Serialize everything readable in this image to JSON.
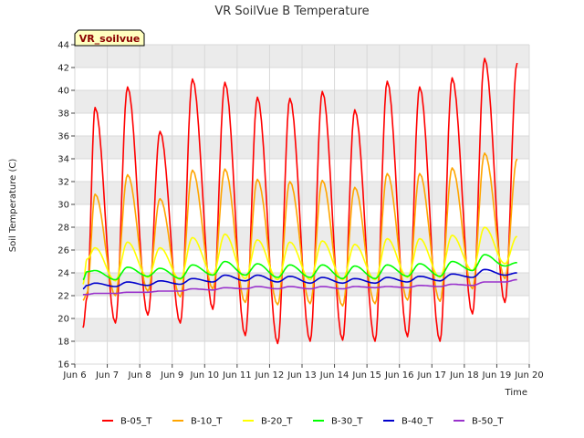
{
  "chart_data": {
    "type": "line",
    "title": "VR SoilVue B Temperature",
    "xlabel": "Time",
    "ylabel": "Soil Temperature (C)",
    "badge": "VR_soilvue",
    "ylim": [
      16,
      44
    ],
    "yticks": [
      16,
      18,
      20,
      22,
      24,
      26,
      28,
      30,
      32,
      34,
      36,
      38,
      40,
      42,
      44
    ],
    "xlim": [
      "Jun 6",
      "Jun 20"
    ],
    "xticks": [
      "Jun 6",
      "Jun 7",
      "Jun 8",
      "Jun 9",
      "Jun 10",
      "Jun 11",
      "Jun 12",
      "Jun 13",
      "Jun 14",
      "Jun 15",
      "Jun 16",
      "Jun 17",
      "Jun 18",
      "Jun 19",
      "Jun 20"
    ],
    "grid": true,
    "legend_position": "bottom",
    "x_start": "Jun 6 09:00",
    "x_end": "Jun 20",
    "daily_extremes": {
      "min_time": "06:00",
      "max_time": "15:00",
      "days": [
        "Jun 6",
        "Jun 7",
        "Jun 8",
        "Jun 9",
        "Jun 10",
        "Jun 11",
        "Jun 12",
        "Jun 13",
        "Jun 14",
        "Jun 15",
        "Jun 16",
        "Jun 17",
        "Jun 18",
        "Jun 19"
      ]
    },
    "series": [
      {
        "name": "B-05_T",
        "color": "#ff0000",
        "start": 21.8,
        "daily_min": [
          19.2,
          19.6,
          20.3,
          19.6,
          20.8,
          18.5,
          17.8,
          18.0,
          18.1,
          18.0,
          18.4,
          18.0,
          20.4,
          21.4
        ],
        "daily_max": [
          38.5,
          40.3,
          36.4,
          41.0,
          40.7,
          39.4,
          39.3,
          39.9,
          38.3,
          40.8,
          40.3,
          41.1,
          42.8,
          42.4
        ]
      },
      {
        "name": "B-10_T",
        "color": "#ffa500",
        "start": 22.2,
        "daily_min": [
          21.6,
          22.0,
          22.4,
          21.9,
          22.6,
          21.4,
          21.2,
          21.3,
          21.1,
          21.3,
          21.6,
          21.5,
          22.6,
          23.5
        ],
        "daily_max": [
          30.9,
          32.6,
          30.5,
          33.0,
          33.1,
          32.2,
          32.0,
          32.1,
          31.5,
          32.7,
          32.7,
          33.2,
          34.5,
          34.0
        ]
      },
      {
        "name": "B-20_T",
        "color": "#ffff00",
        "start": 25.2,
        "daily_min": [
          23.0,
          23.3,
          23.6,
          23.4,
          23.8,
          23.5,
          23.4,
          23.4,
          23.4,
          23.4,
          23.6,
          23.6,
          24.2,
          24.8
        ],
        "daily_max": [
          26.2,
          26.7,
          26.2,
          27.1,
          27.4,
          26.9,
          26.7,
          26.8,
          26.5,
          27.0,
          27.0,
          27.3,
          28.0,
          27.2
        ]
      },
      {
        "name": "B-30_T",
        "color": "#00ff00",
        "start": 24.1,
        "daily_min": [
          23.4,
          23.4,
          23.7,
          23.5,
          23.8,
          23.8,
          23.6,
          23.6,
          23.5,
          23.5,
          23.7,
          23.7,
          24.2,
          24.6
        ],
        "daily_max": [
          24.2,
          24.5,
          24.4,
          24.7,
          25.0,
          24.8,
          24.7,
          24.7,
          24.6,
          24.7,
          24.8,
          25.0,
          25.6,
          24.9
        ]
      },
      {
        "name": "B-40_T",
        "color": "#0000cc",
        "start": 22.9,
        "daily_min": [
          22.6,
          22.8,
          22.9,
          23.0,
          23.2,
          23.3,
          23.2,
          23.1,
          23.1,
          23.1,
          23.2,
          23.3,
          23.6,
          23.8
        ],
        "daily_max": [
          23.1,
          23.2,
          23.3,
          23.5,
          23.8,
          23.8,
          23.7,
          23.6,
          23.5,
          23.6,
          23.7,
          23.9,
          24.3,
          24.0
        ]
      },
      {
        "name": "B-50_T",
        "color": "#9932cc",
        "start": 22.1,
        "daily_min": [
          22.1,
          22.2,
          22.3,
          22.4,
          22.5,
          22.6,
          22.6,
          22.6,
          22.6,
          22.7,
          22.7,
          22.8,
          22.9,
          23.2
        ],
        "daily_max": [
          22.2,
          22.3,
          22.4,
          22.6,
          22.7,
          22.8,
          22.8,
          22.8,
          22.8,
          22.8,
          22.9,
          23.0,
          23.2,
          23.4
        ]
      }
    ]
  }
}
